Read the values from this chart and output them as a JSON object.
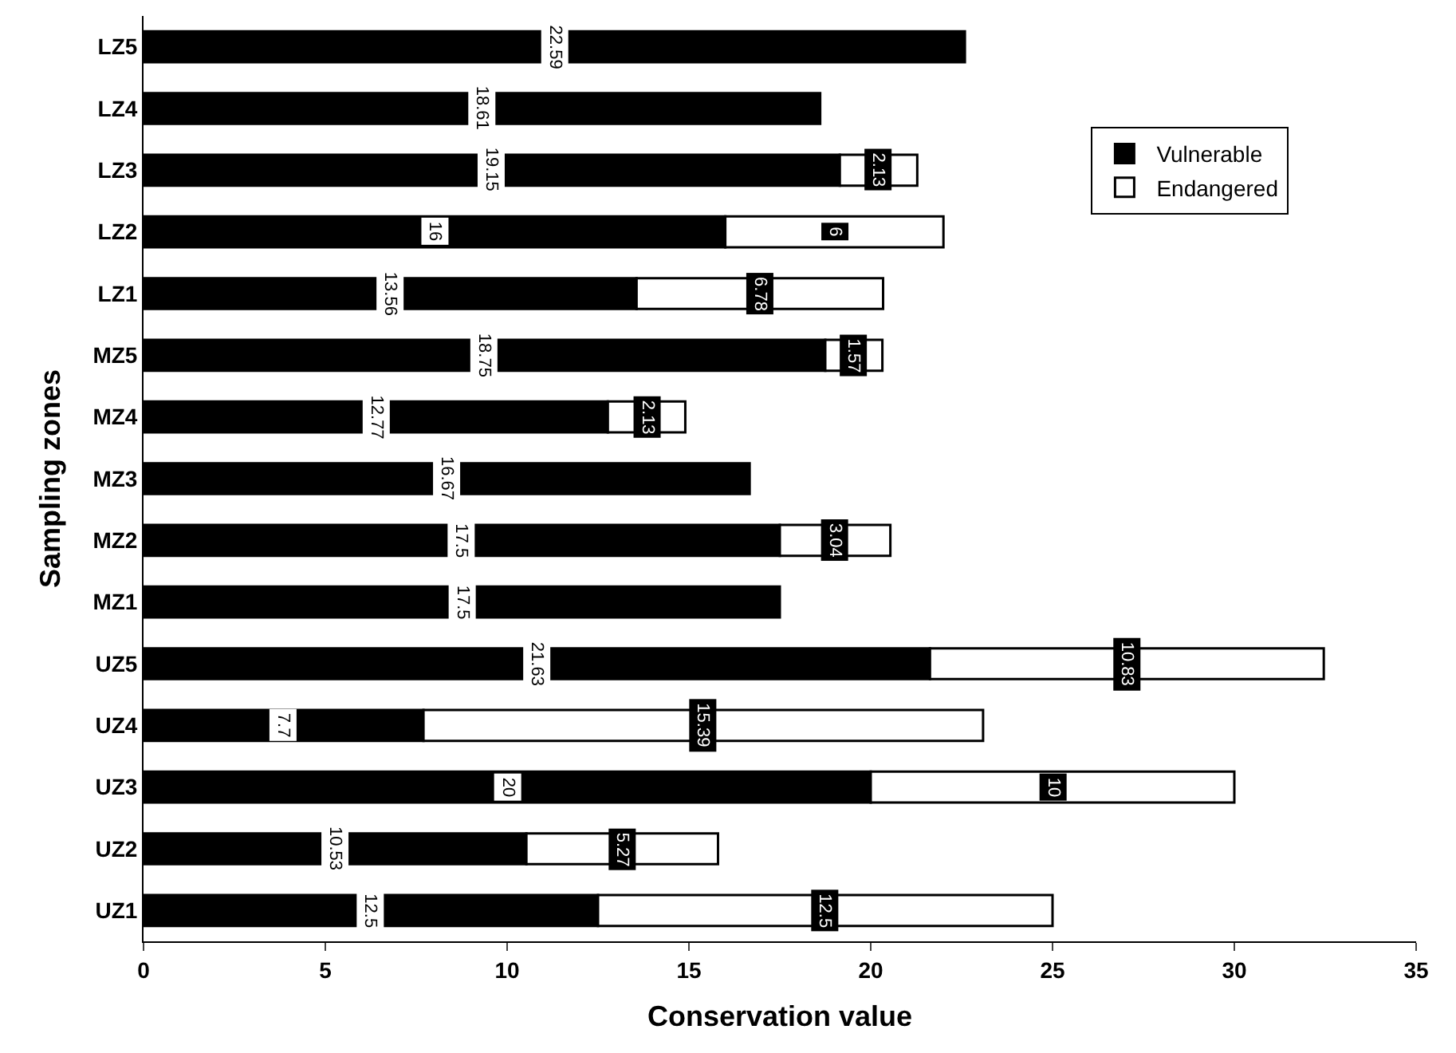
{
  "chart_data": {
    "type": "bar",
    "orientation": "horizontal",
    "stacked": true,
    "data_labels": true,
    "xlabel": "Conservation value",
    "ylabel": "Sampling zones",
    "categories": [
      "LZ5",
      "LZ4",
      "LZ3",
      "LZ2",
      "LZ1",
      "MZ5",
      "MZ4",
      "MZ3",
      "MZ2",
      "MZ1",
      "UZ5",
      "UZ4",
      "UZ3",
      "UZ2",
      "UZ1"
    ],
    "series": [
      {
        "name": "Vulnerable",
        "color": "#000000",
        "values": [
          22.59,
          18.61,
          19.15,
          16,
          13.56,
          18.75,
          12.77,
          16.67,
          17.5,
          17.5,
          21.63,
          7.7,
          20,
          10.53,
          12.5
        ]
      },
      {
        "name": "Endangered",
        "color": "#ffffff",
        "values": [
          null,
          null,
          2.13,
          6,
          6.78,
          1.57,
          2.13,
          null,
          3.04,
          null,
          10.83,
          15.39,
          10,
          5.27,
          12.5
        ]
      }
    ],
    "xlim": [
      0,
      35
    ],
    "xticks": [
      0,
      5,
      10,
      15,
      20,
      25,
      30,
      35
    ],
    "legend": "top right"
  }
}
